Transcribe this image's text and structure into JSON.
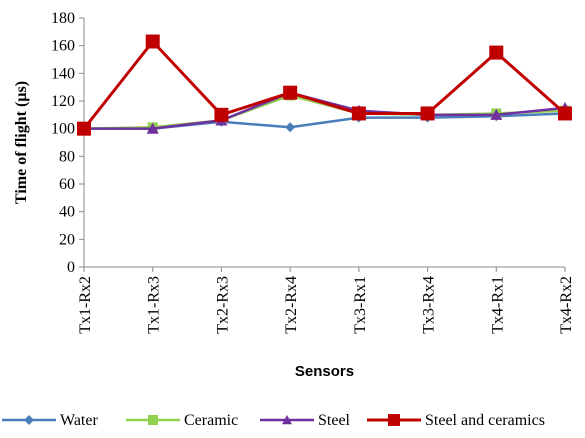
{
  "chart_data": {
    "type": "line",
    "title": "",
    "xlabel": "Sensors",
    "ylabel": "Time of flight (µs)",
    "ylim": [
      0,
      180
    ],
    "ytick_step": 20,
    "grid": false,
    "legend_position": "bottom",
    "categories": [
      "Tx1-Rx2",
      "Tx1-Rx3",
      "Tx2-Rx3",
      "Tx2-Rx4",
      "Tx3-Rx1",
      "Tx3-Rx4",
      "Tx4-Rx1",
      "Tx4-Rx2"
    ],
    "series": [
      {
        "name": "Water",
        "color": "#4a7ebb",
        "marker": "diamond",
        "values": [
          100,
          100,
          105,
          101,
          108,
          108,
          109,
          111
        ]
      },
      {
        "name": "Ceramic",
        "color": "#92d050",
        "marker": "square",
        "values": [
          100,
          101,
          106,
          124,
          111,
          110,
          111,
          113
        ]
      },
      {
        "name": "Steel",
        "color": "#7030a0",
        "marker": "triangle",
        "values": [
          100,
          100,
          106,
          126,
          113,
          110,
          110,
          115
        ]
      },
      {
        "name": "Steel and ceramics",
        "color": "#c00000",
        "marker": "square",
        "values": [
          100,
          163,
          110,
          126,
          111,
          111,
          155,
          111
        ]
      }
    ]
  }
}
